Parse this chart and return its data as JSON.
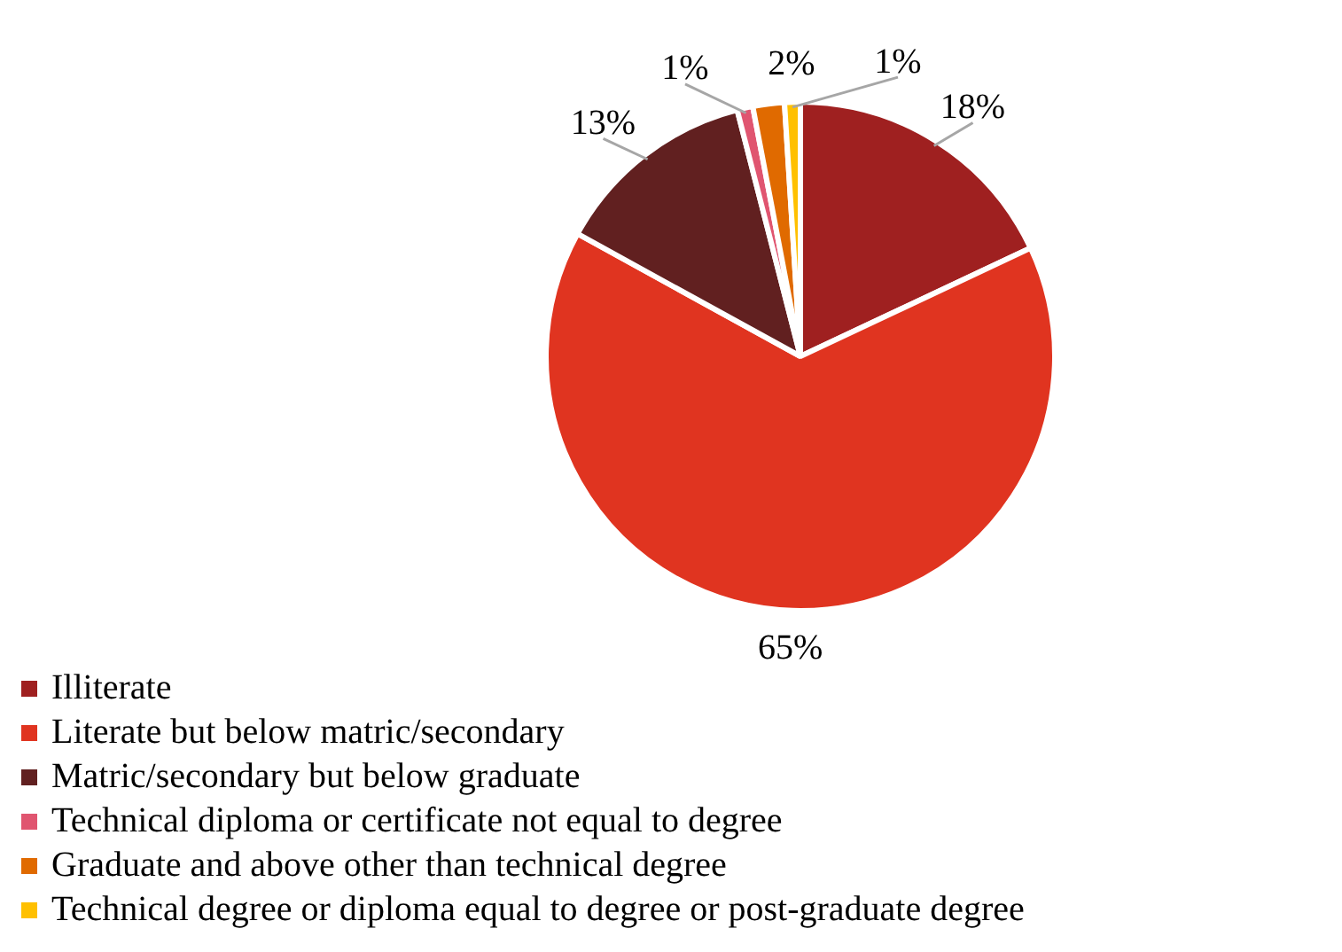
{
  "chart_data": {
    "type": "pie",
    "categories": [
      "Illiterate",
      "Literate but below matric/secondary",
      "Matric/secondary but below graduate",
      "Technical diploma or certificate not equal to degree",
      "Graduate and above other than technical degree",
      "Technical degree or diploma equal to degree or post-graduate degree"
    ],
    "values": [
      18,
      65,
      13,
      1,
      2,
      1
    ],
    "colors": [
      "#9f2020",
      "#e03420",
      "#612020",
      "#e05570",
      "#e06a00",
      "#ffc000"
    ],
    "value_labels": [
      "18%",
      "65%",
      "13%",
      "1%",
      "2%",
      "1%"
    ],
    "legend": "bottom"
  }
}
